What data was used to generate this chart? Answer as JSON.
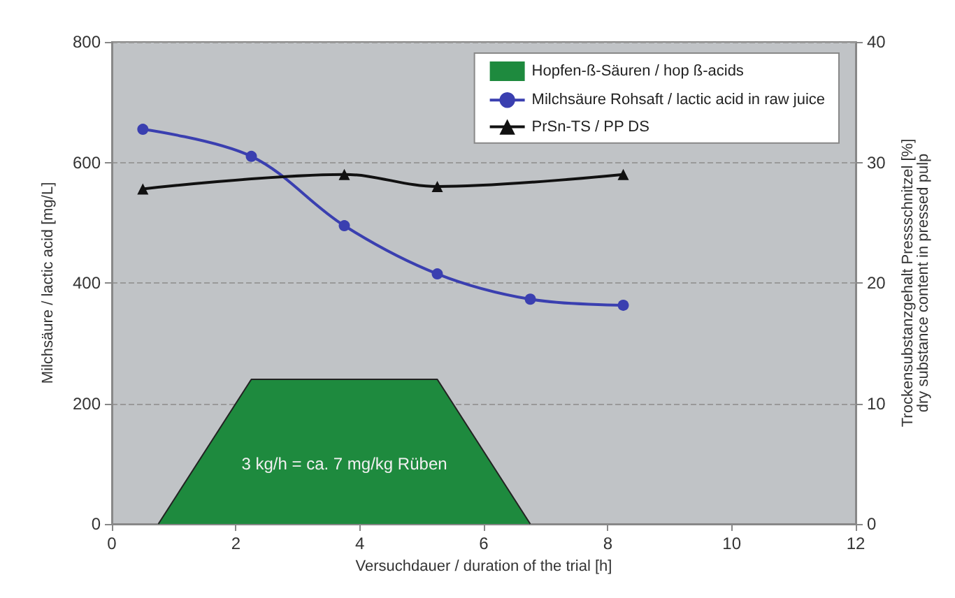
{
  "chart_data": {
    "type": "line",
    "xlabel": "Versuchdauer / duration of the trial [h]",
    "ylabel": "Milchsäure / lactic acid [mg/L]",
    "y2label": "Trockensubstanzgehalt Pressschnitzel [%]\ndry substance content in pressed pulp",
    "xlim": [
      0,
      12
    ],
    "xticks": [
      0,
      2,
      4,
      6,
      8,
      10,
      12
    ],
    "ylim": [
      0,
      800
    ],
    "yticks": [
      0,
      200,
      400,
      600,
      800
    ],
    "y2lim": [
      0,
      40
    ],
    "y2ticks": [
      0,
      10,
      20,
      30,
      40
    ],
    "grid": "y",
    "legend": "top right",
    "annotations": [
      "3 kg/h = ca. 7 mg/kg Rüben"
    ],
    "series": [
      {
        "name": "Hopfen-ß-Säuren / hop ß-acids",
        "type": "area",
        "color": "#1e8a3e",
        "x": [
          0.75,
          2.25,
          5.25,
          6.75
        ],
        "values": [
          0,
          240,
          240,
          0
        ],
        "marker": "none"
      },
      {
        "name": "Milchsäure Rohsaft / lactic acid in raw juice",
        "color": "#3a3fb0",
        "x": [
          0.5,
          2.25,
          3.75,
          5.25,
          6.75,
          8.25
        ],
        "values": [
          655,
          610,
          495,
          415,
          373,
          363
        ],
        "marker": "circle"
      },
      {
        "name": "PrSn-TS / PP DS",
        "axis": "y2",
        "color": "#111111",
        "x": [
          0.5,
          3.75,
          5.25,
          8.25
        ],
        "values": [
          27.8,
          29,
          28,
          29
        ],
        "marker": "triangle"
      }
    ]
  }
}
